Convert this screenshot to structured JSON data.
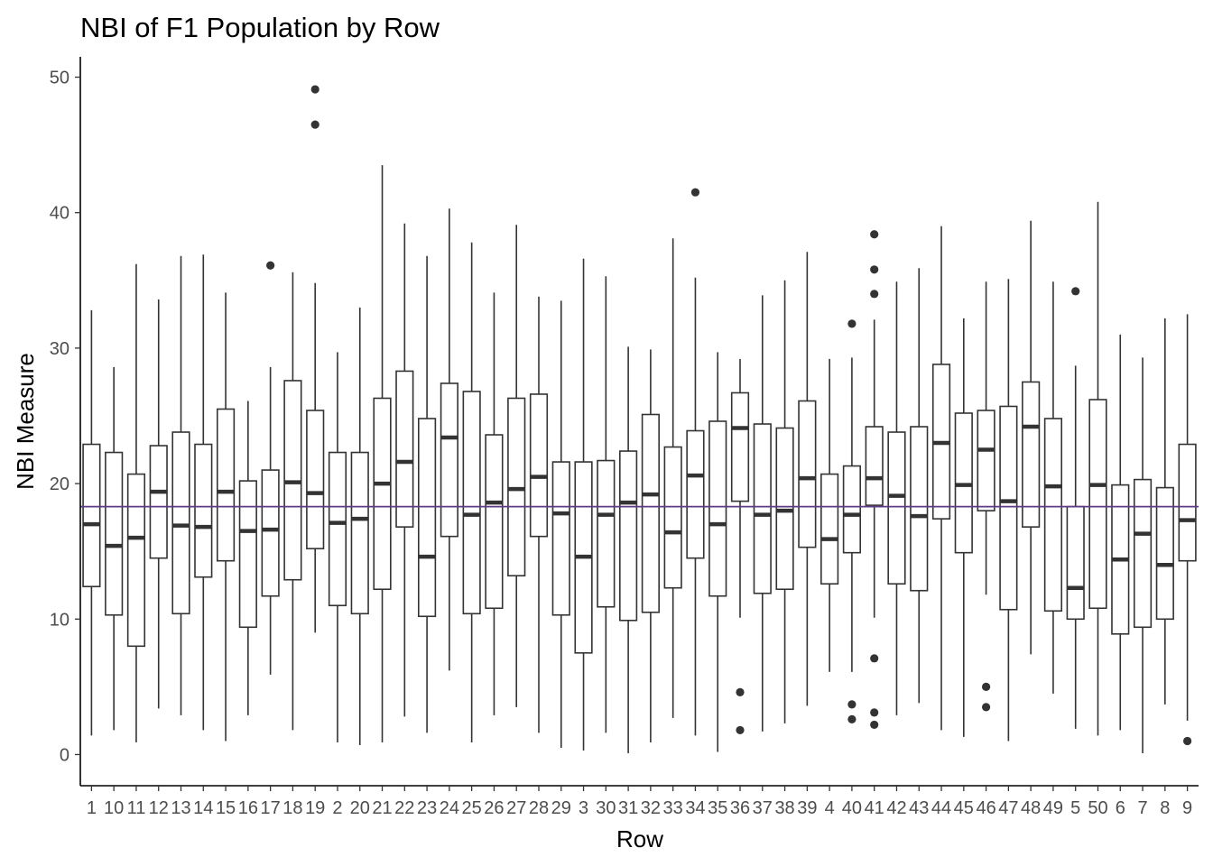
{
  "chart_data": {
    "type": "boxplot",
    "title": "NBI of F1 Population by Row",
    "xlabel": "Row",
    "ylabel": "NBI Measure",
    "ylim": [
      -2.3,
      51.5
    ],
    "yticks": [
      0,
      10,
      20,
      30,
      40,
      50
    ],
    "reference_line": {
      "value": 18.3,
      "color": "#5e3c85"
    },
    "grid": false,
    "categories": [
      "1",
      "10",
      "11",
      "12",
      "13",
      "14",
      "15",
      "16",
      "17",
      "18",
      "19",
      "2",
      "20",
      "21",
      "22",
      "23",
      "24",
      "25",
      "26",
      "27",
      "28",
      "29",
      "3",
      "30",
      "31",
      "32",
      "33",
      "34",
      "35",
      "36",
      "37",
      "38",
      "39",
      "4",
      "40",
      "41",
      "42",
      "43",
      "44",
      "45",
      "46",
      "47",
      "48",
      "49",
      "5",
      "50",
      "6",
      "7",
      "8",
      "9"
    ],
    "boxes": [
      {
        "min": 1.4,
        "q1": 12.4,
        "median": 17.0,
        "q3": 22.9,
        "max": 32.8,
        "outliers": []
      },
      {
        "min": 1.8,
        "q1": 10.3,
        "median": 15.4,
        "q3": 22.3,
        "max": 28.6,
        "outliers": []
      },
      {
        "min": 0.9,
        "q1": 8.0,
        "median": 16.0,
        "q3": 20.7,
        "max": 36.2,
        "outliers": []
      },
      {
        "min": 3.4,
        "q1": 14.5,
        "median": 19.4,
        "q3": 22.8,
        "max": 33.6,
        "outliers": []
      },
      {
        "min": 2.9,
        "q1": 10.4,
        "median": 16.9,
        "q3": 23.8,
        "max": 36.8,
        "outliers": []
      },
      {
        "min": 1.8,
        "q1": 13.1,
        "median": 16.8,
        "q3": 22.9,
        "max": 36.9,
        "outliers": []
      },
      {
        "min": 1.0,
        "q1": 14.3,
        "median": 19.4,
        "q3": 25.5,
        "max": 34.1,
        "outliers": []
      },
      {
        "min": 2.9,
        "q1": 9.4,
        "median": 16.5,
        "q3": 20.2,
        "max": 26.1,
        "outliers": []
      },
      {
        "min": 5.9,
        "q1": 11.7,
        "median": 16.6,
        "q3": 21.0,
        "max": 28.6,
        "outliers": [
          36.1
        ]
      },
      {
        "min": 1.8,
        "q1": 12.9,
        "median": 20.1,
        "q3": 27.6,
        "max": 35.6,
        "outliers": []
      },
      {
        "min": 9.0,
        "q1": 15.2,
        "median": 19.3,
        "q3": 25.4,
        "max": 34.8,
        "outliers": [
          49.1,
          46.5
        ]
      },
      {
        "min": 0.9,
        "q1": 11.0,
        "median": 17.1,
        "q3": 22.3,
        "max": 29.7,
        "outliers": []
      },
      {
        "min": 0.7,
        "q1": 10.4,
        "median": 17.4,
        "q3": 22.3,
        "max": 33.0,
        "outliers": []
      },
      {
        "min": 0.9,
        "q1": 12.2,
        "median": 20.0,
        "q3": 26.3,
        "max": 43.5,
        "outliers": []
      },
      {
        "min": 2.8,
        "q1": 16.8,
        "median": 21.6,
        "q3": 28.3,
        "max": 39.2,
        "outliers": []
      },
      {
        "min": 1.6,
        "q1": 10.2,
        "median": 14.6,
        "q3": 24.8,
        "max": 36.8,
        "outliers": []
      },
      {
        "min": 6.2,
        "q1": 16.1,
        "median": 23.4,
        "q3": 27.4,
        "max": 40.3,
        "outliers": []
      },
      {
        "min": 0.9,
        "q1": 10.4,
        "median": 17.7,
        "q3": 26.8,
        "max": 37.8,
        "outliers": []
      },
      {
        "min": 2.9,
        "q1": 10.8,
        "median": 18.6,
        "q3": 23.6,
        "max": 34.1,
        "outliers": []
      },
      {
        "min": 3.5,
        "q1": 13.2,
        "median": 19.6,
        "q3": 26.3,
        "max": 39.1,
        "outliers": []
      },
      {
        "min": 1.6,
        "q1": 16.1,
        "median": 20.5,
        "q3": 26.6,
        "max": 33.8,
        "outliers": []
      },
      {
        "min": 0.5,
        "q1": 10.3,
        "median": 17.8,
        "q3": 21.6,
        "max": 33.5,
        "outliers": []
      },
      {
        "min": 0.3,
        "q1": 7.5,
        "median": 14.6,
        "q3": 21.6,
        "max": 36.6,
        "outliers": []
      },
      {
        "min": 1.6,
        "q1": 10.9,
        "median": 17.7,
        "q3": 21.7,
        "max": 35.3,
        "outliers": []
      },
      {
        "min": 0.1,
        "q1": 9.9,
        "median": 18.6,
        "q3": 22.4,
        "max": 30.1,
        "outliers": []
      },
      {
        "min": 0.9,
        "q1": 10.5,
        "median": 19.2,
        "q3": 25.1,
        "max": 29.9,
        "outliers": []
      },
      {
        "min": 2.7,
        "q1": 12.3,
        "median": 16.4,
        "q3": 22.7,
        "max": 38.1,
        "outliers": []
      },
      {
        "min": 1.4,
        "q1": 14.5,
        "median": 20.6,
        "q3": 23.9,
        "max": 35.2,
        "outliers": [
          41.5
        ]
      },
      {
        "min": 0.2,
        "q1": 11.7,
        "median": 17.0,
        "q3": 24.6,
        "max": 29.7,
        "outliers": []
      },
      {
        "min": 10.1,
        "q1": 18.7,
        "median": 24.1,
        "q3": 26.7,
        "max": 29.2,
        "outliers": [
          4.6,
          1.8
        ]
      },
      {
        "min": 1.7,
        "q1": 11.9,
        "median": 17.7,
        "q3": 24.4,
        "max": 33.9,
        "outliers": []
      },
      {
        "min": 2.3,
        "q1": 12.2,
        "median": 18.0,
        "q3": 24.1,
        "max": 35.0,
        "outliers": []
      },
      {
        "min": 3.6,
        "q1": 15.3,
        "median": 20.4,
        "q3": 26.1,
        "max": 37.1,
        "outliers": []
      },
      {
        "min": 6.1,
        "q1": 12.6,
        "median": 15.9,
        "q3": 20.7,
        "max": 29.2,
        "outliers": []
      },
      {
        "min": 6.1,
        "q1": 14.9,
        "median": 17.7,
        "q3": 21.3,
        "max": 29.3,
        "outliers": [
          31.8,
          3.7,
          2.6
        ]
      },
      {
        "min": 10.1,
        "q1": 18.4,
        "median": 20.4,
        "q3": 24.2,
        "max": 32.1,
        "outliers": [
          38.4,
          35.8,
          34.0,
          7.1,
          3.1,
          2.2
        ]
      },
      {
        "min": 2.9,
        "q1": 12.6,
        "median": 19.1,
        "q3": 23.8,
        "max": 34.9,
        "outliers": []
      },
      {
        "min": 3.8,
        "q1": 12.1,
        "median": 17.6,
        "q3": 24.2,
        "max": 35.9,
        "outliers": []
      },
      {
        "min": 1.8,
        "q1": 17.4,
        "median": 23.0,
        "q3": 28.8,
        "max": 39.0,
        "outliers": []
      },
      {
        "min": 1.3,
        "q1": 14.9,
        "median": 19.9,
        "q3": 25.2,
        "max": 32.2,
        "outliers": []
      },
      {
        "min": 11.8,
        "q1": 18.0,
        "median": 22.5,
        "q3": 25.4,
        "max": 34.9,
        "outliers": [
          5.0,
          3.5
        ]
      },
      {
        "min": 1.0,
        "q1": 10.7,
        "median": 18.7,
        "q3": 25.7,
        "max": 35.1,
        "outliers": []
      },
      {
        "min": 7.4,
        "q1": 16.8,
        "median": 24.2,
        "q3": 27.5,
        "max": 39.4,
        "outliers": []
      },
      {
        "min": 4.5,
        "q1": 10.6,
        "median": 19.8,
        "q3": 24.8,
        "max": 34.9,
        "outliers": []
      },
      {
        "min": 1.9,
        "q1": 10.0,
        "median": 12.3,
        "q3": 18.3,
        "max": 28.7,
        "outliers": [
          34.2
        ]
      },
      {
        "min": 1.4,
        "q1": 10.8,
        "median": 19.9,
        "q3": 26.2,
        "max": 40.8,
        "outliers": []
      },
      {
        "min": 1.8,
        "q1": 8.9,
        "median": 14.4,
        "q3": 19.9,
        "max": 31.0,
        "outliers": []
      },
      {
        "min": 0.1,
        "q1": 9.4,
        "median": 16.3,
        "q3": 20.3,
        "max": 29.3,
        "outliers": []
      },
      {
        "min": 3.7,
        "q1": 10.0,
        "median": 14.0,
        "q3": 19.7,
        "max": 32.2,
        "outliers": []
      },
      {
        "min": 2.5,
        "q1": 14.3,
        "median": 17.3,
        "q3": 22.9,
        "max": 32.5,
        "outliers": [
          1.0
        ]
      }
    ]
  }
}
